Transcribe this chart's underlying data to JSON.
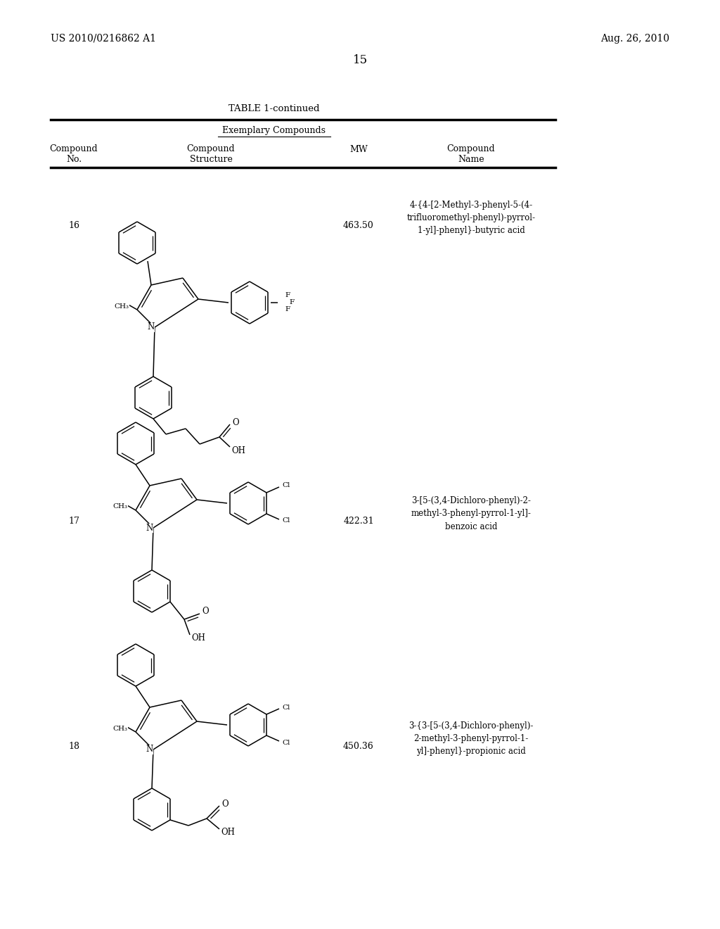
{
  "page_number": "15",
  "patent_number": "US 2010/0216862 A1",
  "patent_date": "Aug. 26, 2010",
  "table_title": "TABLE 1-continued",
  "table_subtitle": "Exemplary Compounds",
  "compounds": [
    {
      "no": "16",
      "mw": "463.50",
      "name": "4-{4-[2-Methyl-3-phenyl-5-(4-\ntrifluoromethyl-phenyl)-pyrrol-\n1-yl]-phenyl}-butyric acid"
    },
    {
      "no": "17",
      "mw": "422.31",
      "name": "3-[5-(3,4-Dichloro-phenyl)-2-\nmethyl-3-phenyl-pyrrol-1-yl]-\nbenzoic acid"
    },
    {
      "no": "18",
      "mw": "450.36",
      "name": "3-{3-[5-(3,4-Dichloro-phenyl)-\n2-methyl-3-phenyl-pyrrol-1-\nyl]-phenyl}-propionic acid"
    }
  ],
  "bg_color": "#ffffff",
  "text_color": "#000000",
  "line_color": "#000000",
  "font_size_header": 9,
  "font_size_body": 9,
  "font_size_page": 10
}
